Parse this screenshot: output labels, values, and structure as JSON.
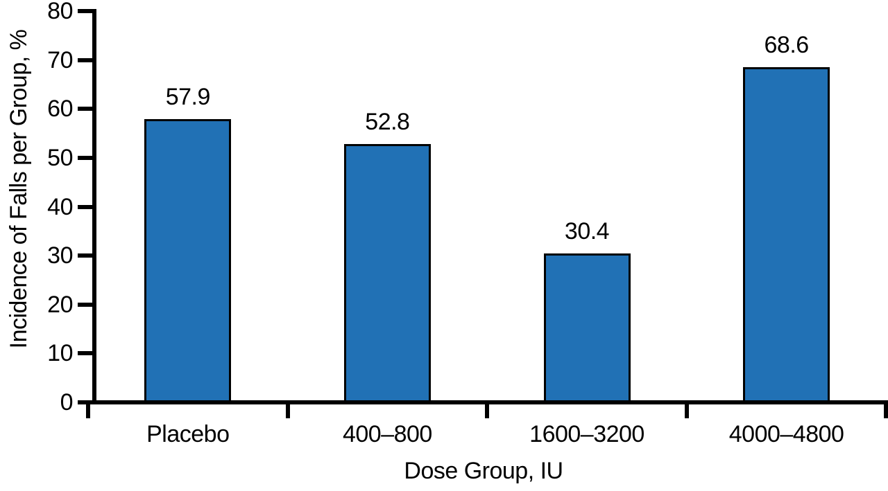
{
  "chart_data": {
    "type": "bar",
    "title": "",
    "xlabel": "Dose Group, IU",
    "ylabel": "Incidence of Falls per Group, %",
    "categories": [
      "Placebo",
      "400–800",
      "1600–3200",
      "4000–4800"
    ],
    "values": [
      57.9,
      52.8,
      30.4,
      68.6
    ],
    "value_labels": [
      "57.9",
      "52.8",
      "30.4",
      "68.6"
    ],
    "ylim": [
      0,
      80
    ],
    "yticks": [
      0,
      10,
      20,
      30,
      40,
      50,
      60,
      70,
      80
    ],
    "grid": false,
    "legend_position": "none",
    "colors": {
      "bar_fill": "#2171B5",
      "bar_border": "#000000",
      "axis": "#000000",
      "text": "#000000",
      "background": "#FFFFFF"
    }
  }
}
